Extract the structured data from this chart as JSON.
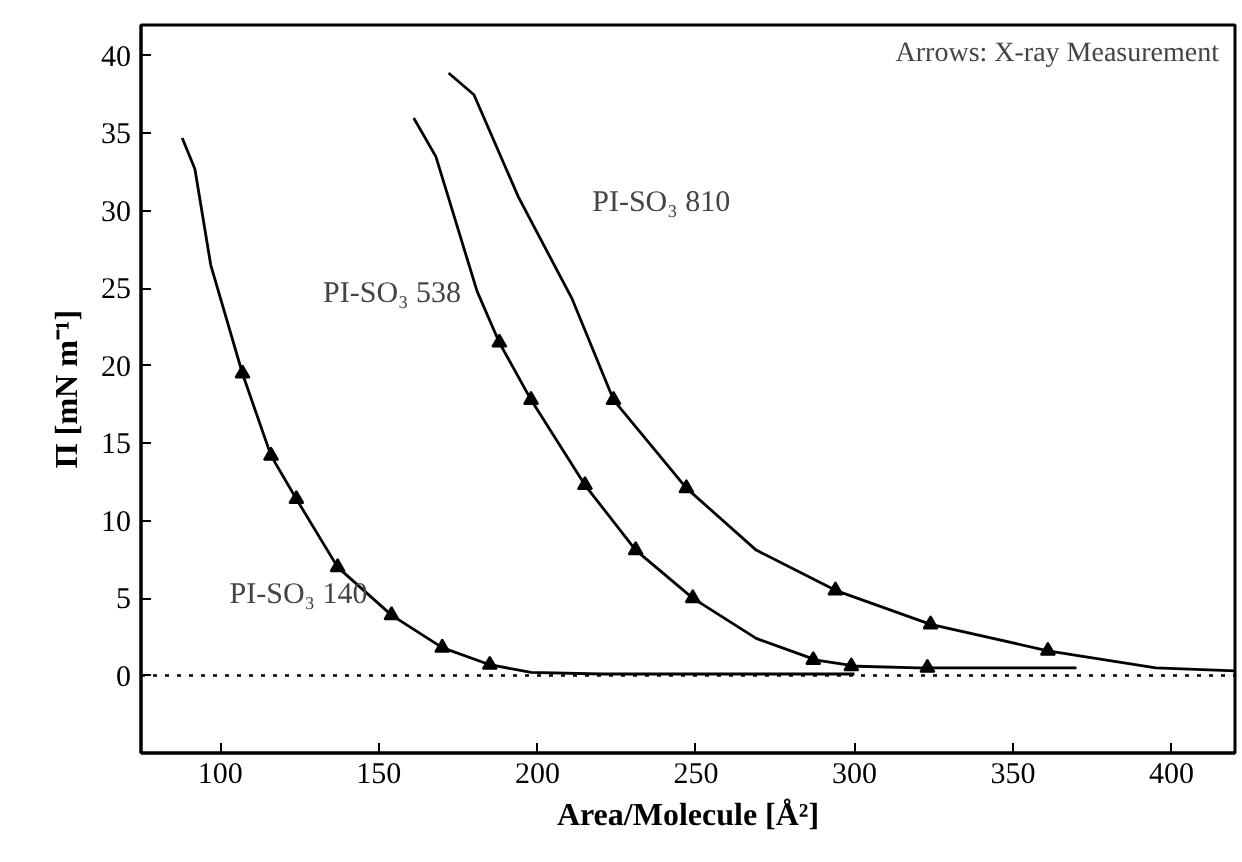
{
  "chart_data": {
    "type": "line",
    "xlabel": "Area/Molecule [Å²]",
    "ylabel": "Π [mN m⁻¹]",
    "annotations": [
      "Arrows: X-ray Measurement"
    ],
    "xlim": [
      75,
      420
    ],
    "ylim": [
      -5,
      42
    ],
    "xticks": [
      100,
      150,
      200,
      250,
      300,
      350,
      400
    ],
    "yticks": [
      0,
      5,
      10,
      15,
      20,
      25,
      30,
      35,
      40
    ],
    "grid": false,
    "line_style": "solid",
    "marker": "none",
    "ref_lines": [
      {
        "axis": "y",
        "value": 0,
        "label": null,
        "color": "#000000",
        "line_style": "dotted"
      }
    ],
    "series": [
      {
        "name": "PI-SO₃ 140",
        "color": "#000000",
        "x": [
          88,
          92,
          97,
          107,
          116,
          124,
          137,
          154,
          170,
          185,
          198,
          220,
          300
        ],
        "values": [
          34.7,
          32.7,
          26.5,
          19.5,
          14.2,
          11.4,
          7.0,
          3.9,
          1.8,
          0.7,
          0.2,
          0.1,
          0.1
        ]
      },
      {
        "name": "PI-SO₃ 538",
        "color": "#000000",
        "x": [
          161,
          168,
          181,
          188,
          198,
          215,
          231,
          249,
          269,
          288,
          301,
          320,
          370
        ],
        "values": [
          36.0,
          33.5,
          24.8,
          21.5,
          17.8,
          12.3,
          8.1,
          5.0,
          2.4,
          1.0,
          0.6,
          0.5,
          0.5
        ]
      },
      {
        "name": "PI-SO₃ 810",
        "color": "#000000",
        "x": [
          172,
          180,
          194,
          211,
          224,
          247,
          269,
          294,
          324,
          361,
          395,
          420
        ],
        "values": [
          38.9,
          37.5,
          30.9,
          24.3,
          17.8,
          12.1,
          8.1,
          5.5,
          3.3,
          1.6,
          0.5,
          0.3
        ]
      },
      {
        "type": "scatter",
        "marker": "triangle",
        "color": "#000000",
        "x": [
          107,
          116,
          124,
          137,
          154,
          170,
          185
        ],
        "values": [
          19.5,
          14.2,
          11.4,
          7.0,
          3.9,
          1.8,
          0.7
        ]
      },
      {
        "type": "scatter",
        "marker": "triangle",
        "color": "#000000",
        "x": [
          188,
          198,
          215,
          231,
          249,
          287,
          299,
          323
        ],
        "values": [
          21.5,
          17.8,
          12.3,
          8.1,
          5.0,
          1.0,
          0.6,
          0.5
        ]
      },
      {
        "type": "scatter",
        "marker": "triangle",
        "color": "#000000",
        "x": [
          224,
          247,
          294,
          324,
          361
        ],
        "values": [
          17.8,
          12.1,
          5.5,
          3.3,
          1.6
        ]
      }
    ]
  }
}
